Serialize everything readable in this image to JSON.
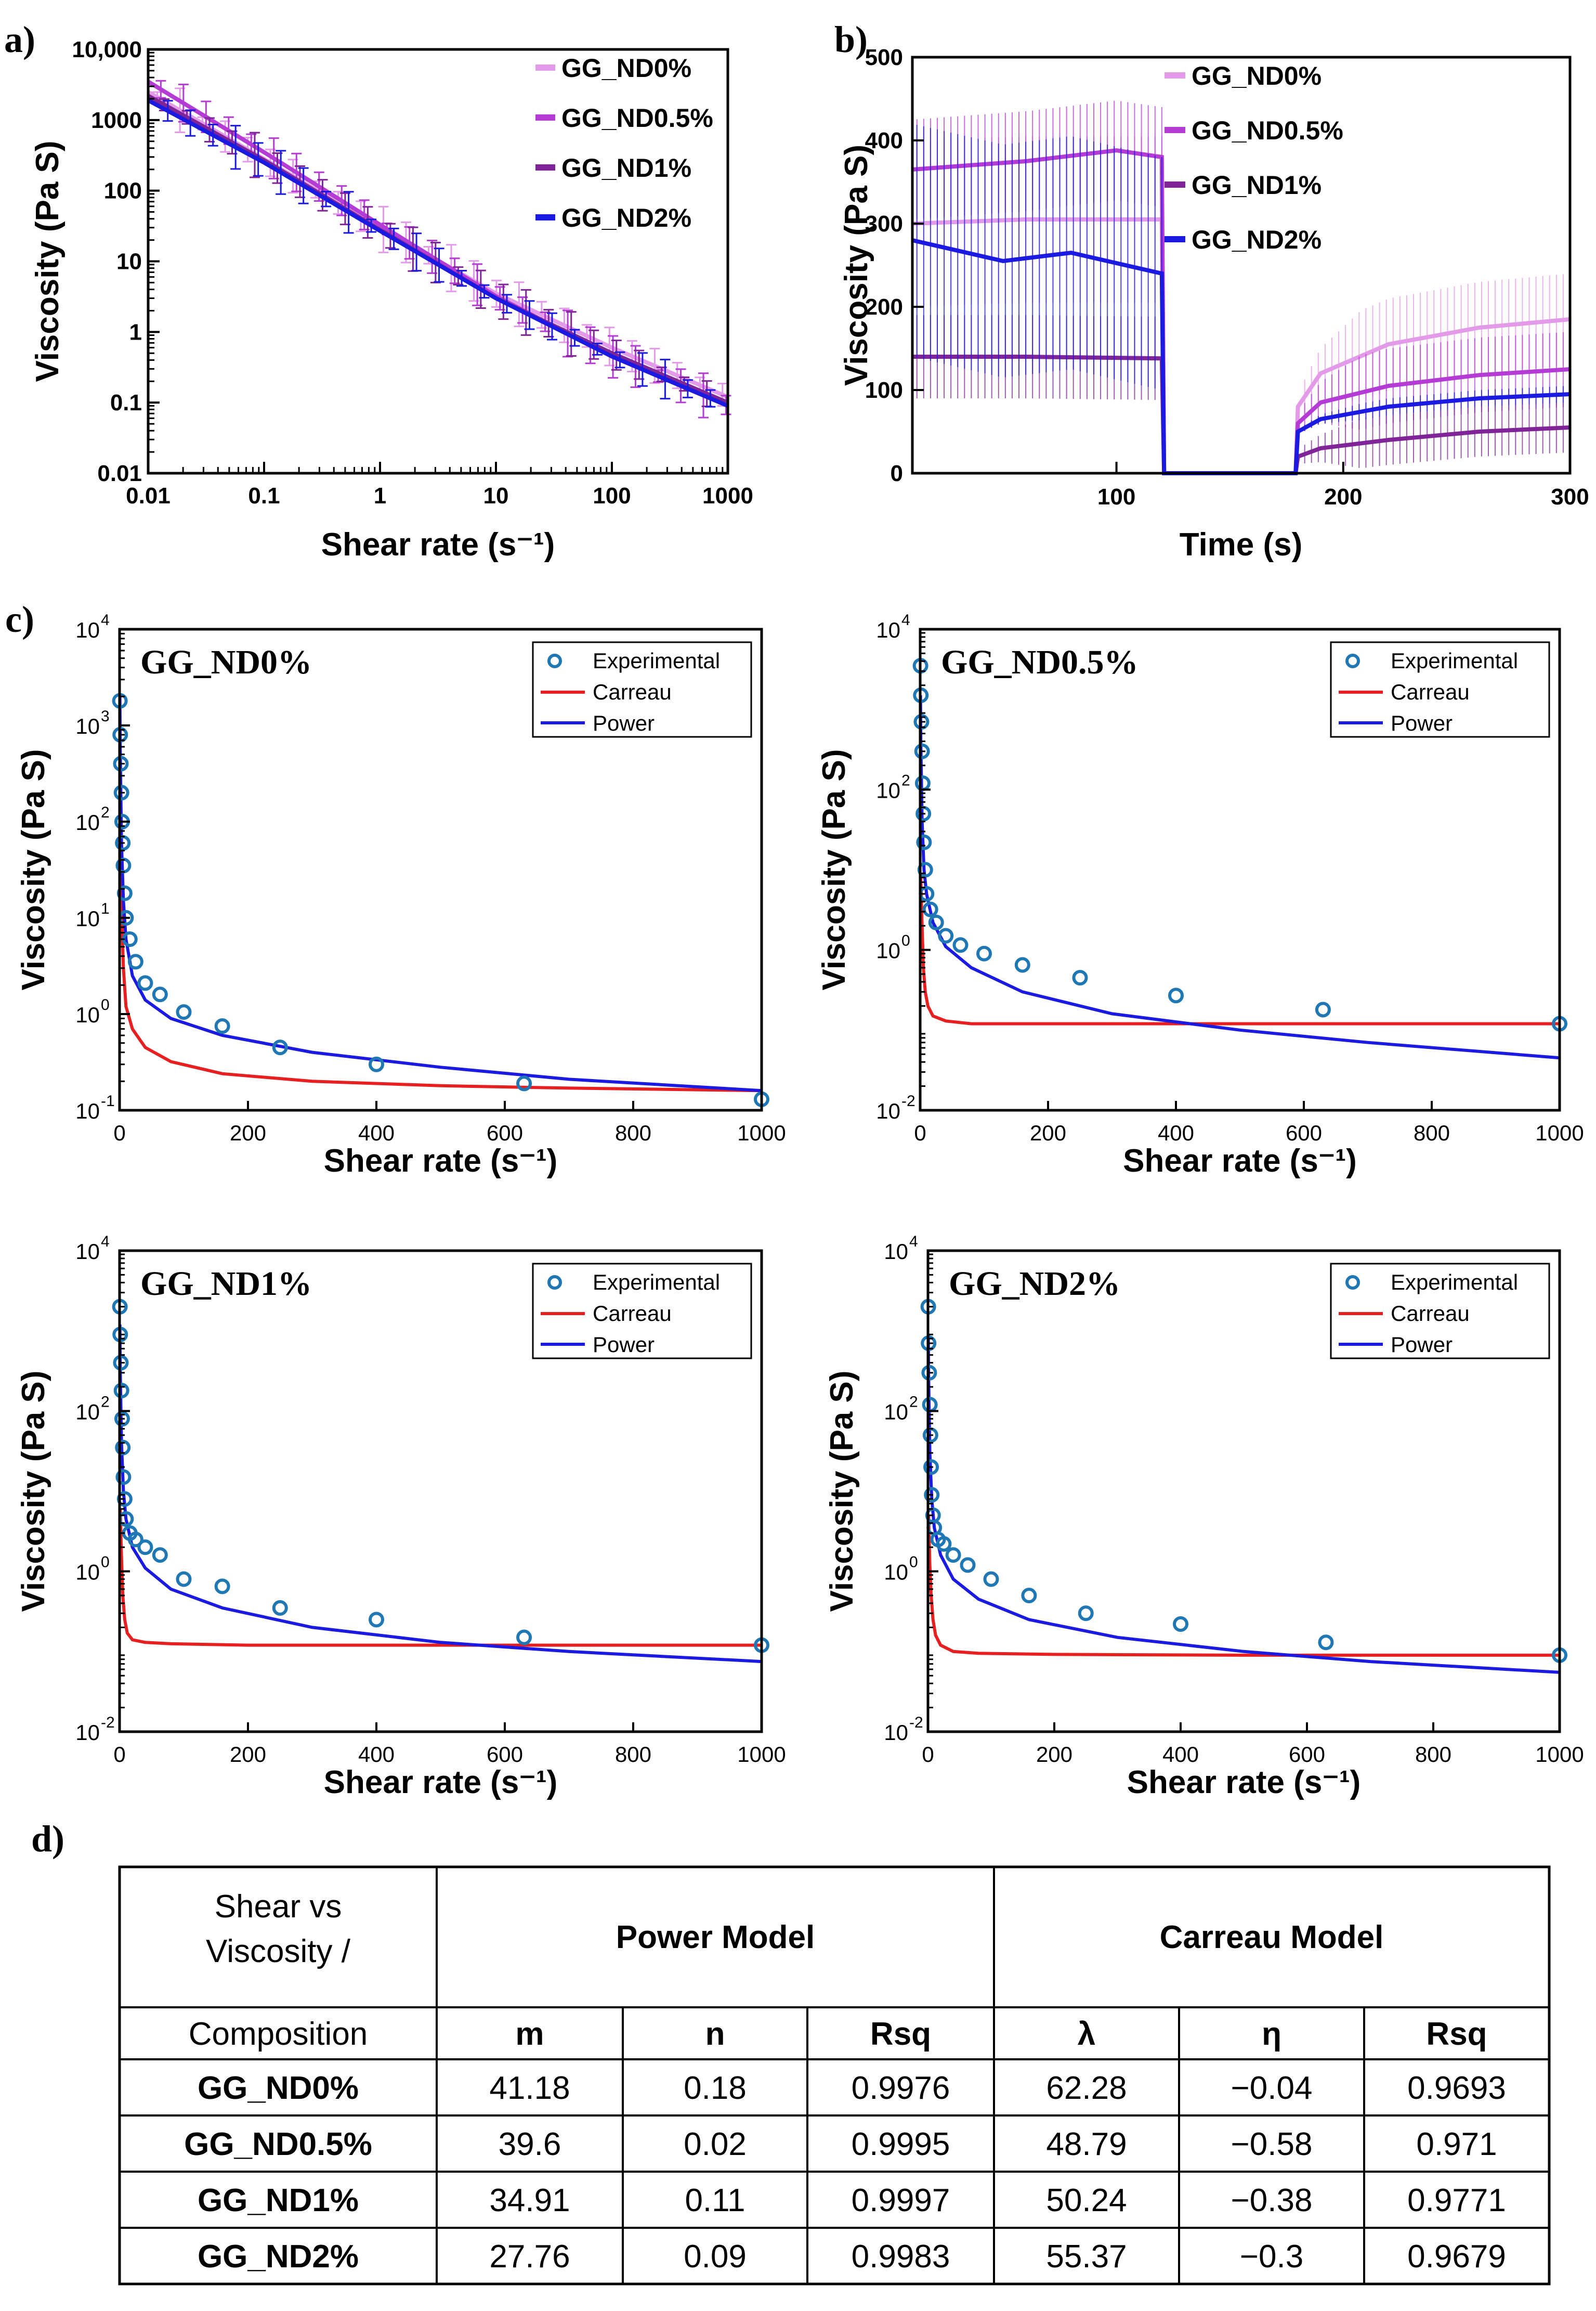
{
  "panel_labels": {
    "a": "a)",
    "b": "b)",
    "c": "c)",
    "d": "d)"
  },
  "colors": {
    "nd0": "#e39ae8",
    "nd05": "#b43bd4",
    "nd1": "#7f2598",
    "nd2": "#1a1ae0",
    "experimental": "#1f77b4",
    "carreau": "#e62020",
    "power": "#1a1ae0"
  },
  "chart_data": [
    {
      "id": "a",
      "type": "line",
      "scale": "log-log",
      "xlabel": "Shear rate (s⁻¹)",
      "ylabel": "Viscosity (Pa S)",
      "xlim": [
        0.01,
        1000
      ],
      "ylim": [
        0.01,
        10000
      ],
      "xticks": [
        "0.01",
        "0.1",
        "1",
        "10",
        "100",
        "1000"
      ],
      "yticks": [
        "0.01",
        "0.1",
        "1",
        "10",
        "100",
        "1000",
        "10,000"
      ],
      "legend": [
        "GG_ND0%",
        "GG_ND0.5%",
        "GG_ND1%",
        "GG_ND2%"
      ],
      "series": [
        {
          "name": "GG_ND0%",
          "x": [
            0.01,
            0.1,
            1,
            10,
            100,
            1000
          ],
          "y": [
            2500,
            280,
            30,
            3.5,
            0.6,
            0.12
          ]
        },
        {
          "name": "GG_ND0.5%",
          "x": [
            0.01,
            0.1,
            1,
            10,
            100,
            1000
          ],
          "y": [
            3500,
            350,
            33,
            3.2,
            0.45,
            0.09
          ]
        },
        {
          "name": "GG_ND1%",
          "x": [
            0.01,
            0.1,
            1,
            10,
            100,
            1000
          ],
          "y": [
            2200,
            270,
            28,
            3.0,
            0.5,
            0.1
          ]
        },
        {
          "name": "GG_ND2%",
          "x": [
            0.01,
            0.1,
            1,
            10,
            100,
            1000
          ],
          "y": [
            1900,
            250,
            27,
            3.0,
            0.45,
            0.09
          ]
        }
      ]
    },
    {
      "id": "b",
      "type": "line",
      "xlabel": "Time (s)",
      "ylabel": "Viscosity (Pa S)",
      "xlim": [
        10,
        300
      ],
      "ylim": [
        0,
        500
      ],
      "xticks": [
        "100",
        "200",
        "300"
      ],
      "yticks": [
        "0",
        "100",
        "200",
        "300",
        "400",
        "500"
      ],
      "legend": [
        "GG_ND0%",
        "GG_ND0.5%",
        "GG_ND1%",
        "GG_ND2%"
      ],
      "series": [
        {
          "name": "GG_ND0%",
          "x": [
            10,
            60,
            120,
            121,
            179,
            180,
            190,
            220,
            260,
            300
          ],
          "y": [
            300,
            305,
            305,
            0,
            0,
            80,
            120,
            155,
            175,
            185
          ]
        },
        {
          "name": "GG_ND0.5%",
          "x": [
            10,
            60,
            100,
            120,
            121,
            179,
            180,
            190,
            220,
            260,
            300
          ],
          "y": [
            365,
            375,
            388,
            380,
            0,
            0,
            60,
            85,
            105,
            118,
            125
          ]
        },
        {
          "name": "GG_ND1%",
          "x": [
            10,
            60,
            120,
            121,
            179,
            180,
            190,
            220,
            260,
            300
          ],
          "y": [
            140,
            140,
            138,
            0,
            0,
            20,
            30,
            40,
            50,
            55
          ]
        },
        {
          "name": "GG_ND2%",
          "x": [
            10,
            50,
            80,
            120,
            121,
            179,
            180,
            190,
            220,
            260,
            300
          ],
          "y": [
            280,
            255,
            265,
            240,
            0,
            0,
            50,
            65,
            80,
            90,
            95
          ]
        }
      ]
    },
    {
      "id": "c1",
      "type": "scatter",
      "title": "GG_ND0%",
      "xlabel": "Shear rate (s⁻¹)",
      "ylabel": "Viscosity (Pa S)",
      "xlim": [
        0,
        1000
      ],
      "ylim": [
        0.1,
        10000
      ],
      "xticks": [
        "0",
        "200",
        "400",
        "600",
        "800",
        "1000"
      ],
      "yticks": [
        "10",
        "10",
        "10",
        "10",
        "10",
        "10"
      ],
      "ytick_exp": [
        "-1",
        "0",
        "1",
        "2",
        "3",
        "4"
      ],
      "legend": [
        "Experimental",
        "Carreau",
        "Power"
      ],
      "experimental": {
        "x": [
          0.5,
          1,
          2,
          3,
          4,
          5,
          6,
          8,
          10,
          16,
          25,
          40,
          63,
          100,
          160,
          250,
          400,
          630,
          1000
        ],
        "y": [
          1800,
          800,
          400,
          200,
          100,
          60,
          35,
          18,
          10,
          6,
          3.5,
          2.1,
          1.6,
          1.05,
          0.75,
          0.45,
          0.3,
          0.19,
          0.13
        ]
      },
      "carreau": {
        "x": [
          1,
          3,
          6,
          10,
          20,
          40,
          80,
          160,
          300,
          500,
          700,
          1000
        ],
        "y": [
          60,
          12,
          3,
          1.2,
          0.7,
          0.45,
          0.32,
          0.24,
          0.2,
          0.18,
          0.17,
          0.16
        ]
      },
      "power": {
        "x": [
          0.5,
          1,
          3,
          6,
          10,
          20,
          40,
          80,
          160,
          300,
          500,
          700,
          1000
        ],
        "y": [
          2000,
          600,
          60,
          15,
          6,
          2.5,
          1.4,
          0.9,
          0.6,
          0.4,
          0.28,
          0.21,
          0.16
        ]
      }
    },
    {
      "id": "c2",
      "type": "scatter",
      "title": "GG_ND0.5%",
      "xlabel": "Shear rate (s⁻¹)",
      "ylabel": "Viscosity (Pa S)",
      "xlim": [
        0,
        1000
      ],
      "ylim": [
        0.01,
        10000
      ],
      "xticks": [
        "0",
        "200",
        "400",
        "600",
        "800",
        "1000"
      ],
      "yticks": [
        "10",
        "10",
        "10",
        "10"
      ],
      "ytick_exp": [
        "-2",
        "0",
        "2",
        "4"
      ],
      "legend": [
        "Experimental",
        "Carreau",
        "Power"
      ],
      "experimental": {
        "x": [
          0.5,
          1,
          2,
          3,
          4,
          5,
          6,
          8,
          10,
          16,
          25,
          40,
          63,
          100,
          160,
          250,
          400,
          630,
          1000
        ],
        "y": [
          3500,
          1500,
          700,
          300,
          120,
          50,
          22,
          10,
          5,
          3.2,
          2.2,
          1.5,
          1.15,
          0.9,
          0.65,
          0.45,
          0.27,
          0.18,
          0.12
        ]
      },
      "carreau": {
        "x": [
          1,
          3,
          5,
          8,
          12,
          20,
          40,
          80,
          200,
          500,
          1000
        ],
        "y": [
          8,
          2,
          0.6,
          0.3,
          0.2,
          0.15,
          0.13,
          0.12,
          0.12,
          0.12,
          0.12
        ]
      },
      "power": {
        "x": [
          0.5,
          1,
          3,
          6,
          10,
          20,
          40,
          80,
          160,
          300,
          500,
          700,
          1000
        ],
        "y": [
          1500,
          400,
          40,
          10,
          5,
          2.2,
          1.1,
          0.6,
          0.3,
          0.16,
          0.1,
          0.07,
          0.045
        ]
      }
    },
    {
      "id": "c3",
      "type": "scatter",
      "title": "GG_ND1%",
      "xlabel": "Shear rate (s⁻¹)",
      "ylabel": "Viscosity (Pa S)",
      "xlim": [
        0,
        1000
      ],
      "ylim": [
        0.01,
        10000
      ],
      "xticks": [
        "0",
        "200",
        "400",
        "600",
        "800",
        "1000"
      ],
      "yticks": [
        "10",
        "10",
        "10",
        "10"
      ],
      "ytick_exp": [
        "-2",
        "0",
        "2",
        "4"
      ],
      "legend": [
        "Experimental",
        "Carreau",
        "Power"
      ],
      "experimental": {
        "x": [
          0.5,
          1,
          2,
          3,
          4,
          5,
          6,
          8,
          10,
          16,
          25,
          40,
          63,
          100,
          160,
          250,
          400,
          630,
          1000
        ],
        "y": [
          2000,
          900,
          400,
          180,
          80,
          35,
          15,
          8,
          4.5,
          3,
          2.5,
          2,
          1.6,
          0.8,
          0.65,
          0.35,
          0.25,
          0.15,
          0.12
        ]
      },
      "carreau": {
        "x": [
          1,
          3,
          5,
          8,
          12,
          20,
          40,
          80,
          200,
          500,
          1000
        ],
        "y": [
          6,
          1.5,
          0.5,
          0.25,
          0.17,
          0.14,
          0.13,
          0.125,
          0.12,
          0.12,
          0.12
        ]
      },
      "power": {
        "x": [
          0.5,
          1,
          3,
          6,
          10,
          20,
          40,
          80,
          160,
          300,
          500,
          700,
          1000
        ],
        "y": [
          1200,
          350,
          40,
          10,
          4.5,
          2,
          1.1,
          0.6,
          0.35,
          0.2,
          0.13,
          0.1,
          0.075
        ]
      }
    },
    {
      "id": "c4",
      "type": "scatter",
      "title": "GG_ND2%",
      "xlabel": "Shear rate (s⁻¹)",
      "ylabel": "Viscosity (Pa S)",
      "xlim": [
        0,
        1000
      ],
      "ylim": [
        0.01,
        10000
      ],
      "xticks": [
        "0",
        "200",
        "400",
        "600",
        "800",
        "1000"
      ],
      "yticks": [
        "10",
        "10",
        "10",
        "10"
      ],
      "ytick_exp": [
        "-2",
        "0",
        "2",
        "4"
      ],
      "legend": [
        "Experimental",
        "Carreau",
        "Power"
      ],
      "experimental": {
        "x": [
          0.5,
          1,
          2,
          3,
          4,
          5,
          6,
          8,
          10,
          16,
          25,
          40,
          63,
          100,
          160,
          250,
          400,
          630,
          1000
        ],
        "y": [
          2000,
          700,
          300,
          120,
          50,
          20,
          9,
          5,
          3.5,
          2.5,
          2.2,
          1.6,
          1.2,
          0.8,
          0.5,
          0.3,
          0.22,
          0.13,
          0.09
        ]
      },
      "carreau": {
        "x": [
          1,
          3,
          5,
          8,
          12,
          20,
          40,
          80,
          200,
          500,
          1000
        ],
        "y": [
          5,
          1.2,
          0.5,
          0.25,
          0.16,
          0.12,
          0.1,
          0.095,
          0.092,
          0.09,
          0.09
        ]
      },
      "power": {
        "x": [
          0.5,
          1,
          3,
          6,
          10,
          20,
          40,
          80,
          160,
          300,
          500,
          700,
          1000
        ],
        "y": [
          900,
          280,
          30,
          8,
          3.5,
          1.6,
          0.8,
          0.45,
          0.25,
          0.15,
          0.1,
          0.075,
          0.055
        ]
      }
    },
    {
      "id": "d",
      "type": "table",
      "header_top": {
        "corner_line1": "Shear vs",
        "corner_line2": "Viscosity /",
        "power": "Power Model",
        "carreau": "Carreau Model"
      },
      "columns": [
        "Composition",
        "m",
        "n",
        "Rsq",
        "λ",
        "η",
        "Rsq"
      ],
      "rows": [
        [
          "GG_ND0%",
          "41.18",
          "0.18",
          "0.9976",
          "62.28",
          "−0.04",
          "0.9693"
        ],
        [
          "GG_ND0.5%",
          "39.6",
          "0.02",
          "0.9995",
          "48.79",
          "−0.58",
          "0.971"
        ],
        [
          "GG_ND1%",
          "34.91",
          "0.11",
          "0.9997",
          "50.24",
          "−0.38",
          "0.9771"
        ],
        [
          "GG_ND2%",
          "27.76",
          "0.09",
          "0.9983",
          "55.37",
          "−0.3",
          "0.9679"
        ]
      ]
    }
  ]
}
